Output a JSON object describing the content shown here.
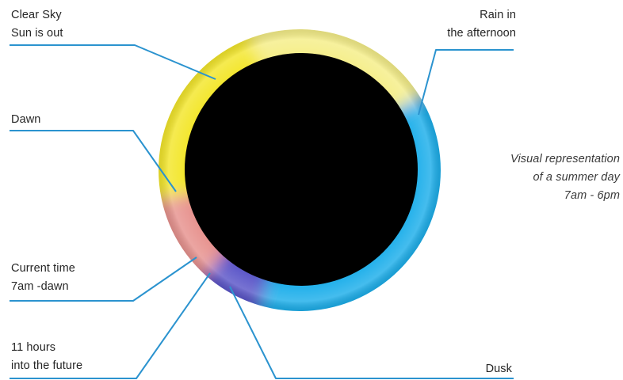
{
  "labels": {
    "clear_sky": [
      "Clear Sky",
      "Sun is out"
    ],
    "rain": [
      "Rain in",
      "the afternoon"
    ],
    "dawn": [
      "Dawn"
    ],
    "current_time": [
      "Current time",
      "7am -dawn"
    ],
    "future": [
      "11 hours",
      "into the future"
    ],
    "dusk": [
      "Dusk"
    ]
  },
  "caption": [
    "Visual representation",
    "of a summer day",
    "7am - 6pm"
  ],
  "colors": {
    "sun_yellow": "#f3e62a",
    "pale_yellow": "#f5ee88",
    "rain_blue": "#1aaeea",
    "dawn_pink": "#e7928e",
    "dusk_purple": "#5a55c8",
    "leader_line": "#2b93cf",
    "core": "#000000"
  }
}
